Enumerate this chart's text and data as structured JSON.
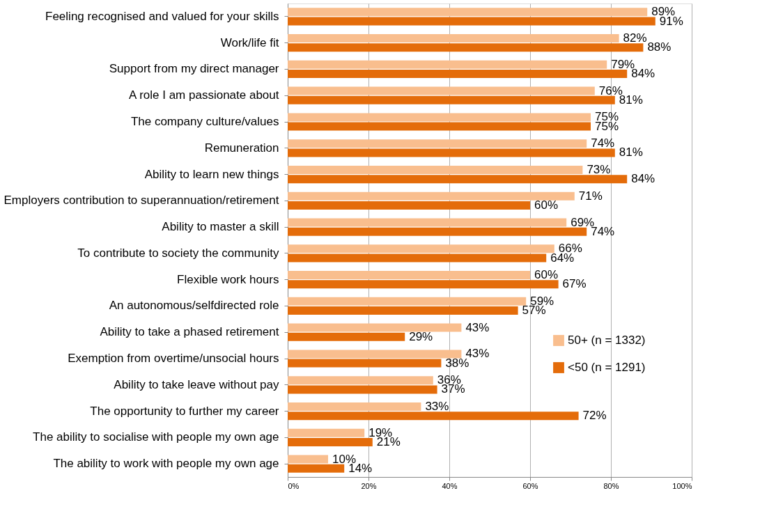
{
  "chart_data": {
    "type": "bar",
    "orientation": "horizontal",
    "categories": [
      "Feeling recognised and valued for your skills",
      "Work/life fit",
      "Support from my direct manager",
      "A role I am passionate about",
      "The company culture/values",
      "Remuneration",
      "Ability to learn new things",
      "Employers contribution to superannuation/retirement",
      "Ability to master a skill",
      "To contribute to society  the community",
      "Flexible work hours",
      "An autonomous/selfdirected role",
      "Ability to take a phased retirement",
      "Exemption from overtime/unsocial hours",
      "Ability to take leave without pay",
      "The opportunity to further my career",
      "The ability to socialise with people my own age",
      "The ability to work with people my own age"
    ],
    "series": [
      {
        "name": "50+ (n = 1332)",
        "color": "#f9be8e",
        "values": [
          89,
          82,
          79,
          76,
          75,
          74,
          73,
          71,
          69,
          66,
          60,
          59,
          43,
          43,
          36,
          33,
          19,
          10
        ],
        "value_labels": [
          "89%",
          "82%",
          "79%",
          "76%",
          "75%",
          "74%",
          "73%",
          "71%",
          "69%",
          "66%",
          "60%",
          "59%",
          "43%",
          "43%",
          "36%",
          "33%",
          "19%",
          "10%"
        ]
      },
      {
        "name": "<50 (n = 1291)",
        "color": "#e46c0a",
        "values": [
          91,
          88,
          84,
          81,
          75,
          81,
          84,
          60,
          74,
          64,
          67,
          57,
          29,
          38,
          37,
          72,
          21,
          14
        ],
        "value_labels": [
          "91%",
          "88%",
          "84%",
          "81%",
          "75%",
          "81%",
          "84%",
          "60%",
          "74%",
          "64%",
          "67%",
          "57%",
          "29%",
          "38%",
          "37%",
          "72%",
          "21%",
          "14%"
        ]
      }
    ],
    "xlim": [
      0,
      100
    ],
    "xticks": [
      {
        "value": 0,
        "label": "0%"
      },
      {
        "value": 20,
        "label": "20%"
      },
      {
        "value": 40,
        "label": "40%"
      },
      {
        "value": 60,
        "label": "60%"
      },
      {
        "value": 80,
        "label": "80%"
      },
      {
        "value": 100,
        "label": "100%"
      }
    ],
    "grid": "x",
    "legend": "right"
  }
}
